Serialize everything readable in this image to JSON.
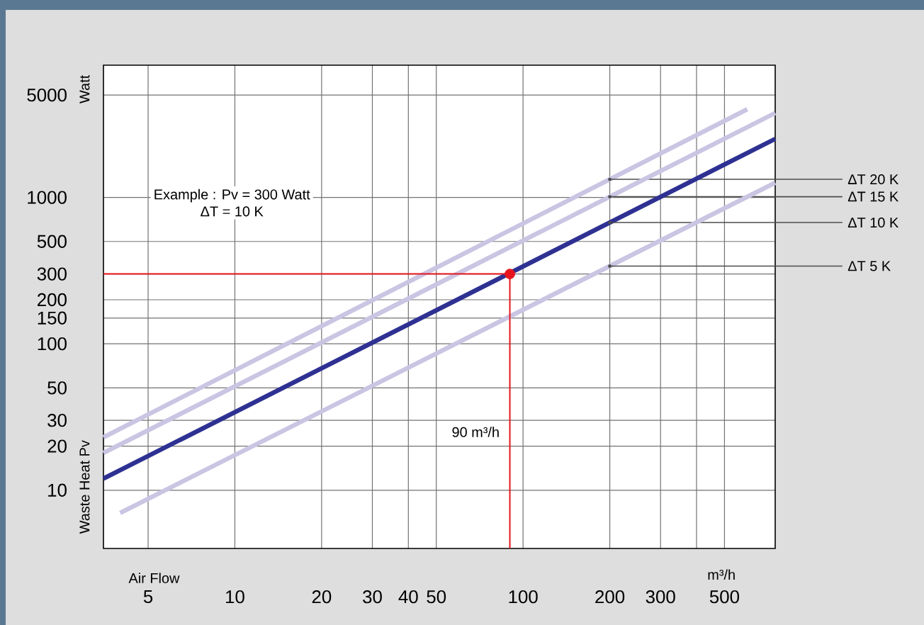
{
  "chart_data": {
    "type": "line",
    "xlabel": "Air Flow",
    "ylabel": "Waste Heat  Pv",
    "log": "xy",
    "grid": true,
    "xlim": [
      3.5,
      750
    ],
    "xticks": [
      5,
      10,
      20,
      30,
      40,
      50,
      100,
      200,
      300,
      {
        "value": 400,
        "label": null
      },
      500
    ],
    "ylim": [
      4,
      8000
    ],
    "yticks": [
      10,
      20,
      30,
      50,
      100,
      150,
      200,
      300,
      500,
      1000,
      5000
    ],
    "annotations": [
      "Example : Pv =  300  Watt",
      "ΔT =  10  K",
      "90 m³/h",
      "m³/h",
      "Watt"
    ],
    "series": [
      {
        "name": "ΔT 20 K",
        "color": "#c9c5e3",
        "x": [
          3.5,
          600
        ],
        "values": [
          23,
          4000
        ]
      },
      {
        "name": "ΔT 15 K",
        "color": "#c9c5e3",
        "x": [
          3.5,
          750
        ],
        "values": [
          18,
          3770
        ]
      },
      {
        "name": "ΔT 10 K",
        "color": "#2e3192",
        "x": [
          3.5,
          750
        ],
        "values": [
          12,
          2510
        ]
      },
      {
        "name": "ΔT 5 K",
        "color": "#c9c5e3",
        "x": [
          4,
          750
        ],
        "values": [
          7,
          1260
        ]
      },
      {
        "type": "line",
        "color": "#e8141c",
        "x": [
          3.5,
          90,
          90
        ],
        "values": [
          300,
          300,
          4
        ]
      },
      {
        "type": "scatter",
        "color": "#e8141c",
        "marker": "circle",
        "x": [
          90
        ],
        "values": [
          300
        ]
      }
    ]
  }
}
